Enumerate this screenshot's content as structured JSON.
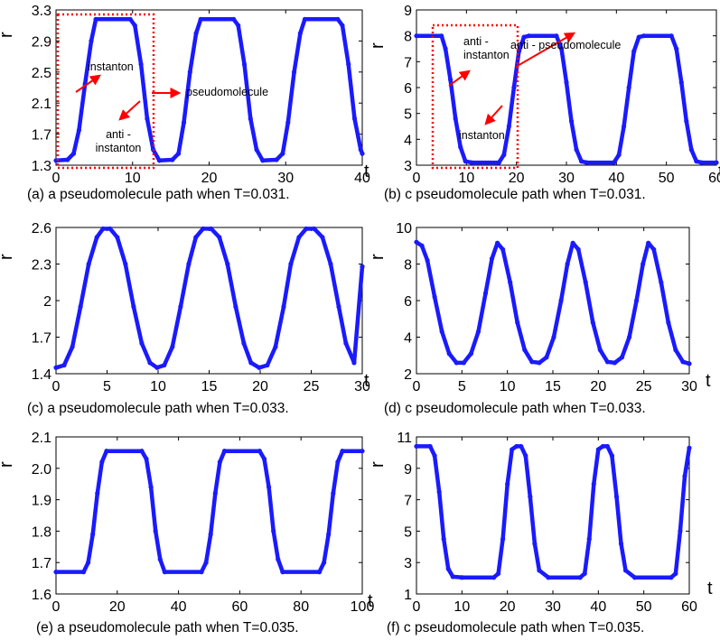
{
  "colors": {
    "curve": "#1a1aff",
    "annotation": "#ff0000",
    "axes": "#000000"
  },
  "chart_data": [
    {
      "type": "line",
      "panel": "a",
      "caption": "(a) a pseudomolecule path when T=0.031.",
      "xlabel": "t",
      "ylabel": "r",
      "xlim": [
        0,
        40
      ],
      "ylim": [
        1.3,
        3.3
      ],
      "xticks": [
        "0",
        "10",
        "20",
        "30",
        "40"
      ],
      "yticks": [
        "1.3",
        "1.7",
        "2.1",
        "2.5",
        "2.9",
        "3.3"
      ],
      "x": [
        0,
        1.5,
        2.3,
        3.0,
        3.8,
        4.6,
        5.2,
        9.7,
        10.3,
        11.1,
        11.9,
        12.7,
        13.5,
        15.2,
        16.0,
        16.7,
        17.5,
        18.3,
        18.9,
        23.2,
        23.8,
        24.6,
        25.4,
        26.2,
        27.0,
        28.8,
        29.6,
        30.3,
        31.1,
        31.9,
        32.5,
        36.8,
        37.4,
        38.2,
        39.0,
        39.8,
        40.0
      ],
      "y": [
        1.36,
        1.37,
        1.45,
        1.75,
        2.35,
        2.9,
        3.18,
        3.18,
        3.1,
        2.6,
        1.9,
        1.5,
        1.36,
        1.37,
        1.45,
        1.85,
        2.5,
        3.0,
        3.18,
        3.18,
        3.1,
        2.6,
        1.9,
        1.5,
        1.36,
        1.37,
        1.45,
        1.85,
        2.5,
        3.0,
        3.18,
        3.18,
        3.1,
        2.6,
        1.9,
        1.5,
        1.45
      ],
      "annotations": [
        {
          "lines": [
            "instanton"
          ]
        },
        {
          "lines": [
            "pseudomolecule"
          ]
        },
        {
          "lines": [
            "anti -",
            "instanton"
          ]
        }
      ]
    },
    {
      "type": "line",
      "panel": "b",
      "caption": "(b) c pseudomolecule path when T=0.031.",
      "xlabel": "t",
      "ylabel": "r",
      "xlim": [
        0,
        60
      ],
      "ylim": [
        3,
        9
      ],
      "xticks": [
        "0",
        "10",
        "20",
        "30",
        "40",
        "50",
        "60"
      ],
      "yticks": [
        "3",
        "4",
        "5",
        "6",
        "7",
        "8",
        "9"
      ],
      "x": [
        0,
        5.0,
        5.8,
        6.8,
        7.8,
        8.8,
        9.8,
        11.0,
        16.5,
        17.5,
        18.5,
        19.5,
        20.5,
        21.5,
        22.5,
        28.0,
        29.0,
        30.0,
        31.0,
        32.0,
        33.0,
        34.0,
        39.5,
        40.5,
        41.5,
        42.5,
        43.5,
        44.5,
        45.5,
        51.0,
        52.0,
        53.0,
        54.0,
        55.0,
        56.0,
        57.0,
        60.0
      ],
      "y": [
        8.0,
        8.0,
        7.5,
        6.3,
        4.8,
        3.7,
        3.15,
        3.1,
        3.1,
        3.4,
        4.5,
        6.0,
        7.4,
        7.95,
        8.0,
        8.0,
        7.5,
        6.2,
        4.7,
        3.6,
        3.15,
        3.1,
        3.1,
        3.4,
        4.5,
        6.0,
        7.4,
        7.95,
        8.0,
        8.0,
        7.5,
        6.2,
        4.7,
        3.6,
        3.15,
        3.1,
        3.1
      ],
      "annotations": [
        {
          "lines": [
            "anti -",
            "instanton"
          ]
        },
        {
          "lines": [
            "anti - pseudomolecule"
          ]
        },
        {
          "lines": [
            "instanton"
          ]
        }
      ]
    },
    {
      "type": "line",
      "panel": "c",
      "caption": "(c) a pseudomolecule path when T=0.033.",
      "xlabel": "t",
      "ylabel": "r",
      "xlim": [
        0,
        30
      ],
      "ylim": [
        1.4,
        2.6
      ],
      "xticks": [
        "0",
        "5",
        "10",
        "15",
        "20",
        "25",
        "30"
      ],
      "yticks": [
        "1.4",
        "1.7",
        "2",
        "2.3",
        "2.6"
      ],
      "x": [
        0,
        0.8,
        1.6,
        2.4,
        3.2,
        4.0,
        4.6,
        5.3,
        6.0,
        6.8,
        7.6,
        8.4,
        9.2,
        9.9,
        10.6,
        11.4,
        12.2,
        13.0,
        13.7,
        14.4,
        15.2,
        16.0,
        16.8,
        17.6,
        18.4,
        19.1,
        19.9,
        20.7,
        21.5,
        22.3,
        23.0,
        23.8,
        24.5,
        25.3,
        26.1,
        26.9,
        27.7,
        28.4,
        29.2,
        30.0
      ],
      "y": [
        1.45,
        1.47,
        1.62,
        1.95,
        2.3,
        2.52,
        2.59,
        2.59,
        2.52,
        2.3,
        1.95,
        1.65,
        1.49,
        1.45,
        1.47,
        1.62,
        1.95,
        2.3,
        2.52,
        2.59,
        2.59,
        2.52,
        2.3,
        1.95,
        1.65,
        1.49,
        1.45,
        1.47,
        1.62,
        1.95,
        2.3,
        2.52,
        2.59,
        2.59,
        2.52,
        2.3,
        1.95,
        1.65,
        1.49,
        2.28
      ]
    },
    {
      "type": "line",
      "panel": "d",
      "caption": "(d) c pseudomolecule path when T=0.033.",
      "xlabel": "t",
      "ylabel": "r",
      "xlim": [
        0,
        30
      ],
      "ylim": [
        2,
        10
      ],
      "xticks": [
        "0",
        "5",
        "10",
        "15",
        "20",
        "25",
        "30"
      ],
      "yticks": [
        "2",
        "4",
        "6",
        "8",
        "10"
      ],
      "x": [
        0,
        0.6,
        1.2,
        2.0,
        2.8,
        3.6,
        4.4,
        5.2,
        6.0,
        6.8,
        7.6,
        8.3,
        8.9,
        9.5,
        10.3,
        11.1,
        11.9,
        12.7,
        13.5,
        14.3,
        15.1,
        15.9,
        16.6,
        17.2,
        17.8,
        18.6,
        19.4,
        20.2,
        21.0,
        21.8,
        22.6,
        23.4,
        24.2,
        24.9,
        25.5,
        26.1,
        26.9,
        27.7,
        28.5,
        29.3,
        30.0
      ],
      "y": [
        9.2,
        9.0,
        8.2,
        6.2,
        4.3,
        3.1,
        2.6,
        2.6,
        3.1,
        4.3,
        6.4,
        8.3,
        9.15,
        8.8,
        7.0,
        4.8,
        3.3,
        2.65,
        2.6,
        2.9,
        4.0,
        6.0,
        8.0,
        9.15,
        8.8,
        7.0,
        4.8,
        3.3,
        2.65,
        2.6,
        2.9,
        4.0,
        6.0,
        8.0,
        9.15,
        8.8,
        7.0,
        4.8,
        3.3,
        2.65,
        2.55
      ]
    },
    {
      "type": "line",
      "panel": "e",
      "caption": "(e) a pseudomolecule path when T=0.035.",
      "xlabel": "t",
      "ylabel": "r",
      "xlim": [
        0,
        100
      ],
      "ylim": [
        1.6,
        2.1
      ],
      "xticks": [
        "0",
        "20",
        "40",
        "60",
        "80",
        "100"
      ],
      "yticks": [
        "1.6",
        "1.7",
        "1.8",
        "1.9",
        "2.0",
        "2.1"
      ],
      "x": [
        0,
        9.0,
        10.5,
        12.0,
        13.5,
        15.0,
        16.5,
        28.0,
        29.5,
        31.0,
        32.5,
        34.0,
        35.5,
        47.5,
        49.0,
        50.5,
        52.0,
        53.5,
        55.0,
        66.5,
        68.0,
        69.5,
        71.0,
        72.5,
        74.0,
        86.0,
        87.5,
        89.0,
        90.5,
        92.0,
        93.5,
        100.0
      ],
      "y": [
        1.67,
        1.67,
        1.7,
        1.79,
        1.92,
        2.02,
        2.055,
        2.055,
        2.03,
        1.94,
        1.8,
        1.71,
        1.67,
        1.67,
        1.7,
        1.79,
        1.92,
        2.02,
        2.055,
        2.055,
        2.03,
        1.94,
        1.8,
        1.71,
        1.67,
        1.67,
        1.7,
        1.79,
        1.92,
        2.02,
        2.055,
        2.055
      ]
    },
    {
      "type": "line",
      "panel": "f",
      "caption": "(f) c pseudomolecule path when T=0.035.",
      "xlabel": "t",
      "ylabel": "r",
      "xlim": [
        0,
        60
      ],
      "ylim": [
        1,
        11
      ],
      "xticks": [
        "0",
        "10",
        "20",
        "30",
        "40",
        "50",
        "60"
      ],
      "yticks": [
        "1",
        "3",
        "5",
        "7",
        "9",
        "11"
      ],
      "x": [
        0,
        3.0,
        4.0,
        5.0,
        6.0,
        7.0,
        8.0,
        10.0,
        17.0,
        18.0,
        19.0,
        20.0,
        21.0,
        22.0,
        23.0,
        24.0,
        25.0,
        26.0,
        27.0,
        29.0,
        36.0,
        37.0,
        38.0,
        39.0,
        40.0,
        41.0,
        42.0,
        43.0,
        44.0,
        45.0,
        46.0,
        48.0,
        56.0,
        57.0,
        58.0,
        59.0,
        60.0
      ],
      "y": [
        10.4,
        10.4,
        9.8,
        7.5,
        4.5,
        2.6,
        2.1,
        2.05,
        2.05,
        2.3,
        4.5,
        8.0,
        10.2,
        10.4,
        10.4,
        9.8,
        7.2,
        4.2,
        2.5,
        2.05,
        2.05,
        2.3,
        4.5,
        8.0,
        10.2,
        10.4,
        10.4,
        9.8,
        7.2,
        4.2,
        2.5,
        2.05,
        2.05,
        2.3,
        5.0,
        8.5,
        10.3
      ]
    }
  ]
}
